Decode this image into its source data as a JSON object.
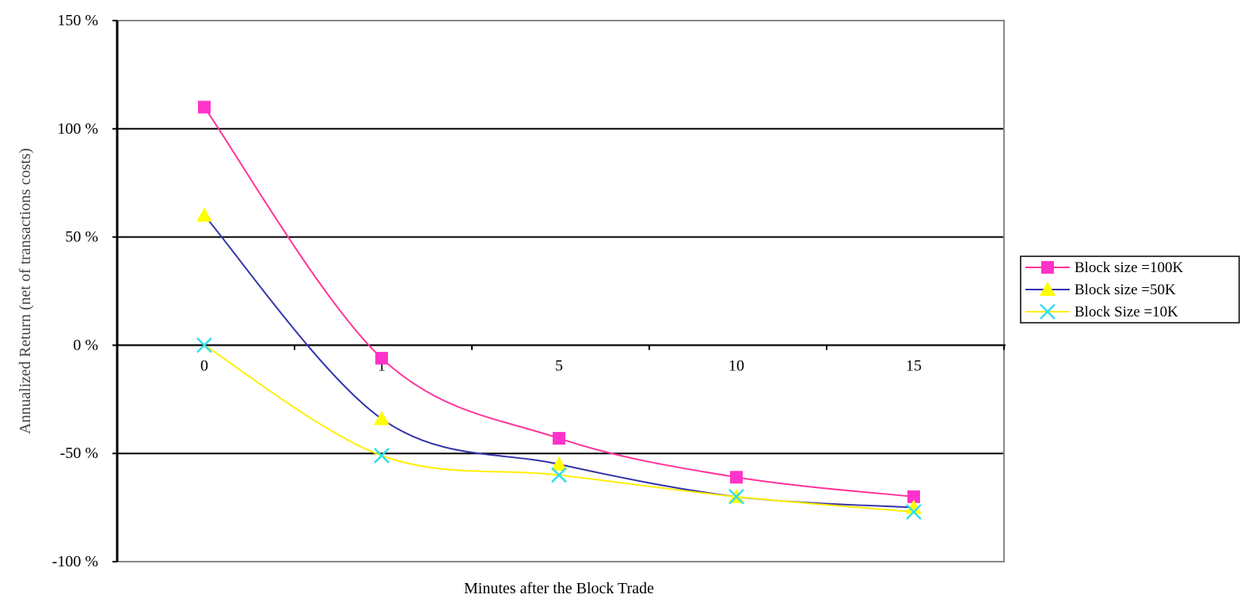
{
  "chart_data": {
    "type": "line",
    "title": "",
    "xlabel": "Minutes after the Block Trade",
    "ylabel": "Annualized Return (net of transactions costs)",
    "categories": [
      "0",
      "1",
      "5",
      "10",
      "15"
    ],
    "ylim": [
      -100,
      150
    ],
    "yticks": [
      150,
      100,
      50,
      0,
      -50,
      -100
    ],
    "ytick_labels": [
      "150 %",
      "100 %",
      "50 %",
      "0 %",
      "-50 %",
      "-100 %"
    ],
    "grid": true,
    "legend": "right",
    "series": [
      {
        "name": "Block size =100K",
        "marker": "square",
        "color": "#ff33cc",
        "line_color": "#ff3399",
        "values": [
          110,
          -6,
          -43,
          -61,
          -70
        ]
      },
      {
        "name": "Block size =50K",
        "marker": "triangle",
        "color": "#ffff00",
        "line_color": "#3333aa",
        "values": [
          60,
          -34,
          -55,
          -70,
          -75
        ]
      },
      {
        "name": "Block Size =10K",
        "marker": "x",
        "color": "#33ddee",
        "line_color": "#ffee00",
        "values": [
          0,
          -51,
          -60,
          -70,
          -77
        ]
      }
    ]
  }
}
